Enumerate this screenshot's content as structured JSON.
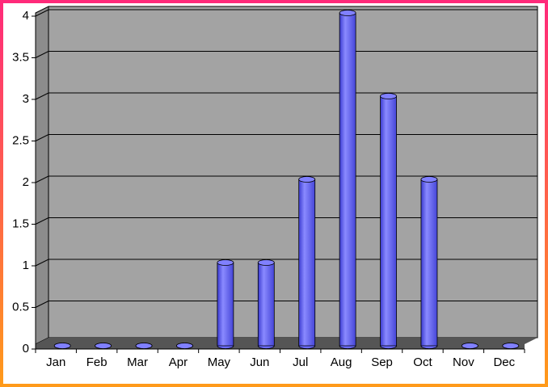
{
  "chart_data": {
    "type": "bar",
    "categories": [
      "Jan",
      "Feb",
      "Mar",
      "Apr",
      "May",
      "Jun",
      "Jul",
      "Aug",
      "Sep",
      "Oct",
      "Nov",
      "Dec"
    ],
    "values": [
      0,
      0,
      0,
      0,
      1,
      1,
      2,
      4,
      3,
      2,
      0,
      0
    ],
    "color": "#6b6bff",
    "ylim": [
      0,
      4
    ],
    "yticks": [
      0,
      0.5,
      1,
      1.5,
      2,
      2.5,
      3,
      3.5,
      4
    ],
    "grid": true
  }
}
